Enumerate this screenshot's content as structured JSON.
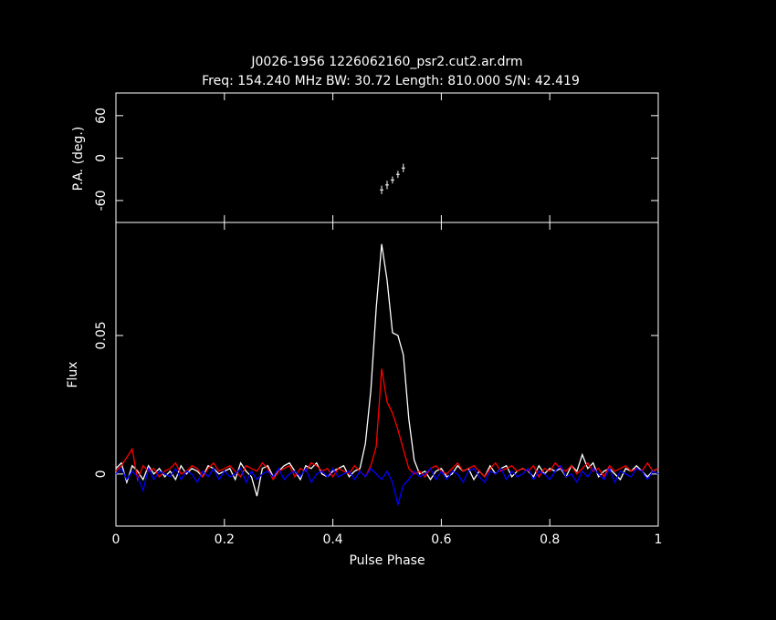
{
  "chart_data": [
    {
      "type": "errorbar",
      "title": "J0026-1956 1226062160_psr2.cut2.ar.drm",
      "subtitle": "Freq: 154.240 MHz BW: 30.72 Length: 810.000 S/N: 42.419",
      "ylabel": "P.A. (deg.)",
      "x": [
        0.49,
        0.5,
        0.51,
        0.52,
        0.53
      ],
      "values": [
        -45,
        -38,
        -31,
        -23,
        -14
      ],
      "errors": [
        6,
        6,
        5,
        5,
        6
      ],
      "color": "#ffffff",
      "xlim": [
        0,
        1
      ],
      "xticks": [
        0,
        0.2,
        0.4,
        0.6,
        0.8,
        1
      ],
      "ylim": [
        -91,
        92
      ],
      "yticks": [
        -60,
        0,
        60
      ]
    },
    {
      "type": "line",
      "xlabel": "Pulse Phase",
      "ylabel": "Flux",
      "x": [
        0,
        0.01,
        0.02,
        0.03,
        0.04,
        0.05,
        0.06,
        0.07,
        0.08,
        0.09,
        0.1,
        0.11,
        0.12,
        0.13,
        0.14,
        0.15,
        0.16,
        0.17,
        0.18,
        0.19,
        0.2,
        0.21,
        0.22,
        0.23,
        0.24,
        0.25,
        0.26,
        0.27,
        0.28,
        0.29,
        0.3,
        0.31,
        0.32,
        0.33,
        0.34,
        0.35,
        0.36,
        0.37,
        0.38,
        0.39,
        0.4,
        0.41,
        0.42,
        0.43,
        0.44,
        0.45,
        0.46,
        0.47,
        0.48,
        0.49,
        0.5,
        0.51,
        0.52,
        0.53,
        0.54,
        0.55,
        0.56,
        0.57,
        0.58,
        0.59,
        0.6,
        0.61,
        0.62,
        0.63,
        0.64,
        0.65,
        0.66,
        0.67,
        0.68,
        0.69,
        0.7,
        0.71,
        0.72,
        0.73,
        0.74,
        0.75,
        0.76,
        0.77,
        0.78,
        0.79,
        0.8,
        0.81,
        0.82,
        0.83,
        0.84,
        0.85,
        0.86,
        0.87,
        0.88,
        0.89,
        0.9,
        0.91,
        0.92,
        0.93,
        0.94,
        0.95,
        0.96,
        0.97,
        0.98,
        0.99,
        1
      ],
      "series": [
        {
          "color": "#ffffff",
          "values": [
            0.002,
            0.004,
            -0.003,
            0.003,
            0.001,
            -0.002,
            0.003,
            0,
            0.002,
            -0.001,
            0.001,
            -0.002,
            0.003,
            0,
            0.002,
            0.001,
            -0.001,
            0.003,
            0.002,
            0,
            0.001,
            0.002,
            -0.002,
            0.004,
            0.001,
            -0.001,
            -0.008,
            0.002,
            0.003,
            -0.001,
            0.001,
            0.003,
            0.004,
            0.001,
            -0.002,
            0.003,
            0.002,
            0.004,
            0,
            -0.001,
            0.001,
            0.002,
            0.003,
            -0.001,
            0.001,
            0.002,
            0.011,
            0.03,
            0.06,
            0.083,
            0.07,
            0.051,
            0.05,
            0.043,
            0.02,
            0.005,
            0,
            0.001,
            -0.002,
            0.001,
            0.002,
            -0.001,
            0,
            0.003,
            0.001,
            0.002,
            -0.002,
            0.001,
            -0.001,
            0.003,
            0,
            0.002,
            0.003,
            -0.001,
            0.001,
            0.002,
            0.001,
            -0.001,
            0.003,
            0,
            0.002,
            0.001,
            0.002,
            -0.001,
            0.003,
            0.001,
            0.007,
            0.002,
            0.004,
            -0.001,
            0.001,
            0.002,
            0,
            -0.002,
            0.002,
            0.001,
            0.003,
            0.001,
            -0.001,
            0.001,
            0.002
          ]
        },
        {
          "color": "#ff0000",
          "values": [
            0.001,
            0.003,
            0.006,
            0.009,
            -0.002,
            0.003,
            0.001,
            0.002,
            -0.001,
            0.001,
            0.002,
            0.004,
            0,
            0.001,
            0.003,
            0.002,
            -0.001,
            0.002,
            0.004,
            0.001,
            0.002,
            0.003,
            0.001,
            -0.001,
            0.003,
            0.002,
            0.001,
            0.004,
            0.002,
            -0.002,
            0.001,
            0.002,
            0.003,
            -0.001,
            0.002,
            0.001,
            0.004,
            0.003,
            0.001,
            0.002,
            -0.001,
            0.002,
            0.001,
            0,
            0.003,
            0.001,
            -0.001,
            0.003,
            0.01,
            0.038,
            0.026,
            0.022,
            0.016,
            0.009,
            0.002,
            0,
            0.001,
            -0.001,
            0.002,
            0.003,
            0.001,
            0,
            0.002,
            0.004,
            0.001,
            0.002,
            0.003,
            0.001,
            -0.001,
            0.002,
            0.004,
            0.001,
            0.002,
            0.003,
            0.001,
            0.002,
            0.001,
            0.003,
            -0.001,
            0.002,
            0.001,
            0.004,
            0.002,
            0.001,
            0.003,
            0,
            0.002,
            0.004,
            0.001,
            0.002,
            -0.001,
            0.003,
            0.001,
            0.002,
            0.003,
            0.001,
            0.002,
            0.001,
            0.004,
            0.001,
            0.002
          ]
        },
        {
          "color": "#0000ff",
          "values": [
            0,
            0.002,
            -0.002,
            0.001,
            -0.001,
            -0.006,
            0.002,
            -0.002,
            0.001,
            0,
            -0.001,
            0.002,
            -0.002,
            0.001,
            0,
            -0.003,
            0.001,
            -0.001,
            0.002,
            -0.002,
            0.001,
            -0.001,
            0,
            0.002,
            -0.003,
            0.001,
            -0.002,
            0,
            0.001,
            -0.001,
            0.002,
            -0.002,
            0,
            0.001,
            -0.001,
            0.002,
            -0.003,
            0,
            0.001,
            -0.001,
            0.002,
            -0.001,
            0,
            0.001,
            -0.002,
            0.001,
            -0.001,
            0.002,
            0,
            -0.002,
            0.001,
            -0.003,
            -0.011,
            -0.004,
            -0.002,
            0.001,
            -0.001,
            0,
            0.002,
            -0.002,
            0.001,
            -0.002,
            0.001,
            0,
            -0.003,
            0.001,
            0.002,
            -0.001,
            -0.003,
            0.001,
            0,
            0.002,
            -0.002,
            0.001,
            -0.001,
            0,
            0.002,
            -0.002,
            0.001,
            0,
            -0.002,
            0.001,
            0.003,
            -0.001,
            0,
            -0.003,
            0.001,
            -0.001,
            0.002,
            0,
            -0.002,
            0.002,
            -0.003,
            0.001,
            0,
            -0.001,
            0.002,
            0.001,
            -0.002,
            0.001,
            0
          ]
        }
      ],
      "xlim": [
        0,
        1
      ],
      "xticks": [
        0,
        0.2,
        0.4,
        0.6,
        0.8,
        1
      ],
      "ylim": [
        -0.0188,
        0.0908
      ],
      "yticks": [
        0,
        0.05
      ]
    }
  ]
}
